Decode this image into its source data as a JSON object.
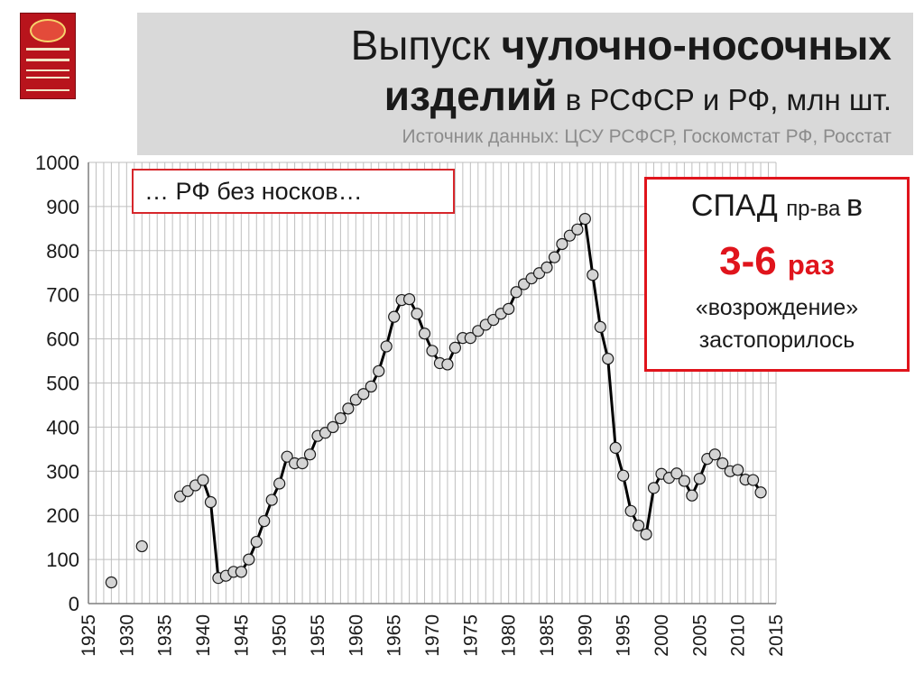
{
  "header": {
    "title_part1": "Выпуск ",
    "title_bold1": "чулочно-носочных",
    "title_bold2": "изделий",
    "title_part2": " в РСФСР и РФ, млн шт.",
    "source": "Источник данных: ЦСУ РСФСР, Госкомстат РФ, Росстат"
  },
  "note": "… РФ без носков…",
  "callout": {
    "line1_a": "СПАД ",
    "line1_b": "пр-ва ",
    "line1_c": "в",
    "line2_a": "3-6 ",
    "line2_b": "раз",
    "line3": "«возрождение»",
    "line4": "застопорилось"
  },
  "colors": {
    "line": "#000000",
    "marker_fill": "#d4d4d4",
    "grid": "#bfbfbf",
    "callout_border": "#e0141c",
    "note_border": "#d6262b",
    "header_band": "#d9d9d9"
  },
  "chart_data": {
    "type": "line",
    "title": "",
    "xlabel": "",
    "ylabel": "",
    "xlim": [
      1925,
      2015
    ],
    "ylim": [
      0,
      1000
    ],
    "x_ticks": [
      1925,
      1930,
      1935,
      1940,
      1945,
      1950,
      1955,
      1960,
      1965,
      1970,
      1975,
      1980,
      1985,
      1990,
      1995,
      2000,
      2005,
      2010,
      2015
    ],
    "y_ticks": [
      0,
      100,
      200,
      300,
      400,
      500,
      600,
      700,
      800,
      900,
      1000
    ],
    "grid": true,
    "legend": false,
    "isolated_points": [
      {
        "x": 1928,
        "y": 48
      },
      {
        "x": 1932,
        "y": 130
      }
    ],
    "series": [
      {
        "x": [
          1937,
          1938,
          1939,
          1940,
          1941,
          1942,
          1943,
          1944,
          1945,
          1946,
          1947,
          1948,
          1949,
          1950,
          1951,
          1952,
          1953,
          1954,
          1955,
          1956,
          1957,
          1958,
          1959,
          1960,
          1961,
          1962,
          1963,
          1964,
          1965,
          1966,
          1967,
          1968,
          1969,
          1970,
          1971,
          1972,
          1973,
          1974,
          1975,
          1976,
          1977,
          1978,
          1979,
          1980,
          1981,
          1982,
          1983,
          1984,
          1985,
          1986,
          1987,
          1988,
          1989,
          1990,
          1991,
          1992,
          1993,
          1994,
          1995,
          1996,
          1997,
          1998,
          1999,
          2000,
          2001,
          2002,
          2003,
          2004,
          2005,
          2006,
          2007,
          2008,
          2009,
          2010,
          2011,
          2012,
          2013
        ],
        "y": [
          243,
          255,
          268,
          280,
          230,
          58,
          63,
          72,
          72,
          100,
          140,
          187,
          235,
          272,
          333,
          318,
          318,
          338,
          380,
          387,
          400,
          420,
          442,
          462,
          475,
          492,
          527,
          583,
          650,
          688,
          690,
          657,
          612,
          573,
          545,
          542,
          580,
          602,
          602,
          618,
          632,
          643,
          657,
          668,
          706,
          724,
          737,
          749,
          762,
          785,
          815,
          834,
          848,
          872,
          745,
          627,
          555,
          353,
          290,
          210,
          177,
          157,
          262,
          294,
          285,
          295,
          278,
          245,
          283,
          328,
          338,
          318,
          300,
          303,
          281,
          280,
          252
        ]
      }
    ]
  }
}
